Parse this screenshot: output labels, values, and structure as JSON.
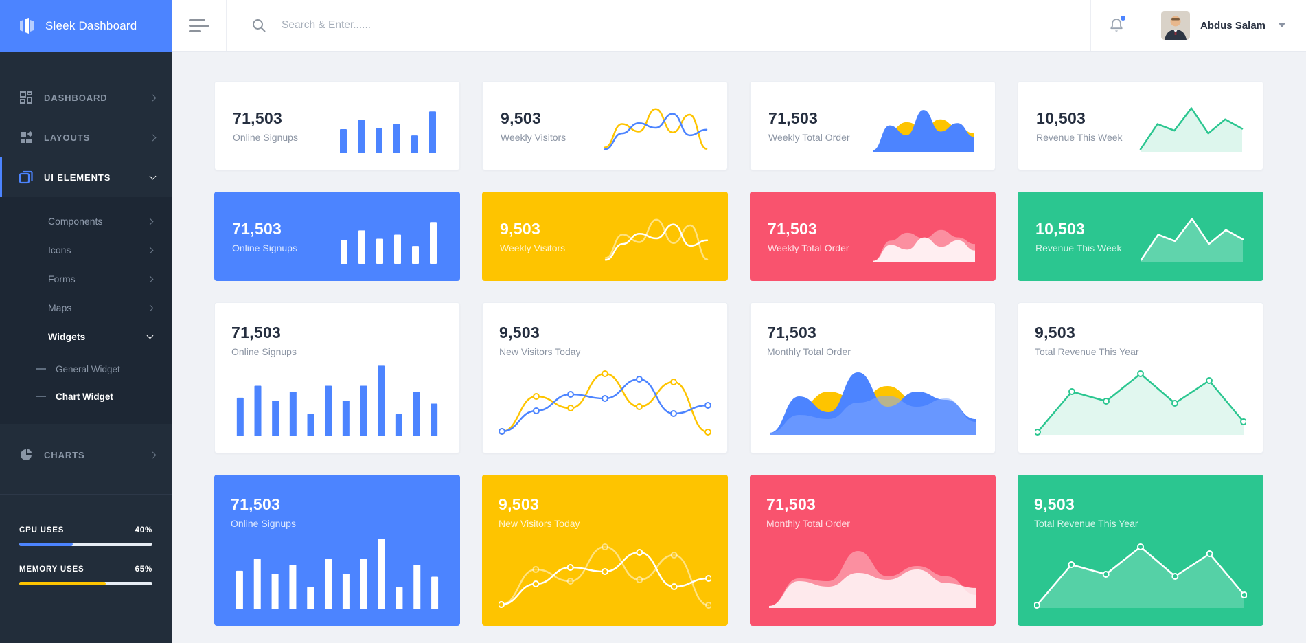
{
  "app": {
    "brand": "Sleek Dashboard"
  },
  "header": {
    "search_placeholder": "Search & Enter......",
    "user": {
      "name": "Abdus Salam"
    }
  },
  "sidebar": {
    "items": [
      {
        "label": "DASHBOARD"
      },
      {
        "label": "LAYOUTS"
      },
      {
        "label": "UI ELEMENTS"
      },
      {
        "label": "CHARTS"
      }
    ],
    "submenu": [
      {
        "label": "Components"
      },
      {
        "label": "Icons"
      },
      {
        "label": "Forms"
      },
      {
        "label": "Maps"
      },
      {
        "label": "Widgets"
      }
    ],
    "widgets_children": [
      {
        "label": "General Widget"
      },
      {
        "label": "Chart Widget"
      }
    ],
    "usage": [
      {
        "label": "CPU USES",
        "value": "40%",
        "pct": 40,
        "color": "#4c84ff"
      },
      {
        "label": "MEMORY USES",
        "value": "65%",
        "pct": 65,
        "color": "#fec400"
      }
    ]
  },
  "colors": {
    "primary": "#4c84ff",
    "yellow": "#fec400",
    "red": "#f9536e",
    "green": "#2bc690",
    "sidebar": "#222d3a",
    "background": "#f0f2f6"
  },
  "cards": [
    {
      "size": "sm",
      "tone": "white",
      "value": "71,503",
      "label": "Online Signups",
      "chart": {
        "layers": [
          {
            "type": "bars",
            "values": [
              46,
              64,
              48,
              56,
              34,
              80
            ],
            "color": "#4c84ff"
          }
        ]
      }
    },
    {
      "size": "sm",
      "tone": "white",
      "value": "9,503",
      "label": "Weekly Visitors",
      "chart": {
        "layers": [
          {
            "type": "line",
            "smooth": true,
            "values": [
              8,
              58,
              42,
              90,
              40,
              78,
              5
            ],
            "color": "#fec400",
            "width": 2.5
          },
          {
            "type": "line",
            "smooth": true,
            "values": [
              4,
              38,
              60,
              50,
              80,
              34,
              46
            ],
            "color": "#4c84ff",
            "width": 2.5
          }
        ]
      }
    },
    {
      "size": "sm",
      "tone": "white",
      "value": "71,503",
      "label": "Weekly Total Order",
      "chart": {
        "layers": [
          {
            "type": "line",
            "smooth": true,
            "stroke": false,
            "values": [
              2,
              45,
              62,
              50,
              68,
              52,
              38
            ],
            "fill": "#fec400",
            "fillOpacity": 1
          },
          {
            "type": "line",
            "smooth": true,
            "stroke": false,
            "values": [
              2,
              55,
              34,
              88,
              42,
              60,
              30
            ],
            "fill": "#4c84ff",
            "fillOpacity": 1
          }
        ]
      }
    },
    {
      "size": "sm",
      "tone": "white",
      "value": "10,503",
      "label": "Revenue This Week",
      "chart": {
        "layers": [
          {
            "type": "line",
            "smooth": false,
            "values": [
              4,
              58,
              44,
              92,
              38,
              68,
              48
            ],
            "color": "#2bc690",
            "width": 2.5,
            "fill": "#2bc690",
            "fillOpacity": 0.16
          }
        ]
      }
    },
    {
      "size": "sm",
      "tone": "blue",
      "value": "71,503",
      "label": "Online Signups",
      "chart": {
        "layers": [
          {
            "type": "bars",
            "values": [
              46,
              64,
              48,
              56,
              34,
              80
            ],
            "color": "#ffffff"
          }
        ]
      }
    },
    {
      "size": "sm",
      "tone": "yellow",
      "value": "9,503",
      "label": "Weekly Visitors",
      "chart": {
        "layers": [
          {
            "type": "line",
            "smooth": true,
            "values": [
              8,
              58,
              42,
              90,
              40,
              78,
              5
            ],
            "color": "#ffffff",
            "opacity": 0.5,
            "width": 2.5
          },
          {
            "type": "line",
            "smooth": true,
            "values": [
              4,
              38,
              60,
              50,
              80,
              34,
              46
            ],
            "color": "#ffffff",
            "width": 2.5
          }
        ]
      }
    },
    {
      "size": "sm",
      "tone": "red",
      "value": "71,503",
      "label": "Weekly Total Order",
      "chart": {
        "layers": [
          {
            "type": "line",
            "smooth": true,
            "stroke": false,
            "values": [
              2,
              45,
              62,
              50,
              68,
              52,
              38
            ],
            "fill": "#ffffff",
            "fillOpacity": 0.35
          },
          {
            "type": "line",
            "smooth": true,
            "stroke": false,
            "values": [
              2,
              36,
              26,
              52,
              32,
              46,
              24
            ],
            "fill": "#ffffff",
            "fillOpacity": 0.85
          }
        ]
      }
    },
    {
      "size": "sm",
      "tone": "green",
      "value": "10,503",
      "label": "Revenue This Week",
      "chart": {
        "layers": [
          {
            "type": "line",
            "smooth": false,
            "values": [
              4,
              58,
              44,
              92,
              38,
              68,
              48
            ],
            "color": "#ffffff",
            "width": 2.5,
            "fill": "#ffffff",
            "fillOpacity": 0.25
          }
        ]
      }
    },
    {
      "size": "lg",
      "tone": "white",
      "value": "71,503",
      "label": "Online Signups",
      "chart": {
        "layers": [
          {
            "type": "bars",
            "values": [
              52,
              68,
              48,
              60,
              30,
              68,
              48,
              68,
              95,
              30,
              60,
              44
            ],
            "color": "#4c84ff"
          }
        ]
      }
    },
    {
      "size": "lg",
      "tone": "white",
      "value": "9,503",
      "label": "New Visitors Today",
      "chart": {
        "layers": [
          {
            "type": "line",
            "smooth": true,
            "markers": true,
            "values": [
              4,
              55,
              38,
              88,
              40,
              76,
              3
            ],
            "color": "#fec400",
            "width": 2.5,
            "markerFill": "#ffffff"
          },
          {
            "type": "line",
            "smooth": true,
            "markers": true,
            "values": [
              4,
              34,
              58,
              52,
              80,
              30,
              42
            ],
            "color": "#4c84ff",
            "width": 2.5,
            "markerFill": "#ffffff"
          }
        ]
      }
    },
    {
      "size": "lg",
      "tone": "white",
      "value": "71,503",
      "label": "Monthly Total Order",
      "chart": {
        "layers": [
          {
            "type": "line",
            "smooth": true,
            "stroke": false,
            "values": [
              2,
              40,
              62,
              50,
              70,
              48,
              45,
              18
            ],
            "fill": "#fec400",
            "fillOpacity": 1
          },
          {
            "type": "line",
            "smooth": true,
            "stroke": false,
            "values": [
              2,
              55,
              32,
              90,
              40,
              62,
              50,
              22
            ],
            "fill": "#4c84ff",
            "fillOpacity": 1
          },
          {
            "type": "line",
            "smooth": true,
            "stroke": false,
            "values": [
              2,
              28,
              22,
              46,
              56,
              40,
              52,
              18
            ],
            "fill": "#7fa8ff",
            "fillOpacity": 0.55
          }
        ]
      }
    },
    {
      "size": "lg",
      "tone": "white",
      "value": "9,503",
      "label": "Total Revenue This Year",
      "chart": {
        "layers": [
          {
            "type": "line",
            "smooth": false,
            "markers": true,
            "values": [
              3,
              62,
              48,
              88,
              45,
              78,
              18
            ],
            "color": "#2bc690",
            "width": 2.5,
            "fill": "#2bc690",
            "fillOpacity": 0.14,
            "markerFill": "#ffffff"
          }
        ]
      }
    },
    {
      "size": "lg",
      "tone": "blue",
      "value": "71,503",
      "label": "Online Signups",
      "chart": {
        "layers": [
          {
            "type": "bars",
            "values": [
              52,
              68,
              48,
              60,
              30,
              68,
              48,
              68,
              95,
              30,
              60,
              44
            ],
            "color": "#ffffff"
          }
        ]
      }
    },
    {
      "size": "lg",
      "tone": "yellow",
      "value": "9,503",
      "label": "New Visitors Today",
      "chart": {
        "layers": [
          {
            "type": "line",
            "smooth": true,
            "markers": true,
            "values": [
              4,
              55,
              38,
              88,
              40,
              76,
              3
            ],
            "color": "#ffffff",
            "opacity": 0.5,
            "width": 2.5,
            "markerFill": "#fec400"
          },
          {
            "type": "line",
            "smooth": true,
            "markers": true,
            "values": [
              4,
              34,
              58,
              52,
              80,
              30,
              42
            ],
            "color": "#ffffff",
            "width": 2.5,
            "markerFill": "#fec400"
          }
        ]
      }
    },
    {
      "size": "lg",
      "tone": "red",
      "value": "71,503",
      "label": "Monthly Total Order",
      "chart": {
        "layers": [
          {
            "type": "line",
            "smooth": true,
            "stroke": false,
            "values": [
              2,
              42,
              38,
              82,
              45,
              60,
              45,
              18
            ],
            "fill": "#ffffff",
            "fillOpacity": 0.35
          },
          {
            "type": "line",
            "smooth": true,
            "stroke": false,
            "values": [
              2,
              38,
              30,
              50,
              40,
              55,
              35,
              28
            ],
            "fill": "#ffffff",
            "fillOpacity": 0.8
          }
        ]
      }
    },
    {
      "size": "lg",
      "tone": "green",
      "value": "9,503",
      "label": "Total Revenue This Year",
      "chart": {
        "layers": [
          {
            "type": "line",
            "smooth": false,
            "markers": true,
            "values": [
              3,
              62,
              48,
              88,
              45,
              78,
              18
            ],
            "color": "#ffffff",
            "width": 2.5,
            "fill": "#ffffff",
            "fillOpacity": 0.2,
            "markerFill": "#2bc690"
          }
        ]
      }
    }
  ]
}
